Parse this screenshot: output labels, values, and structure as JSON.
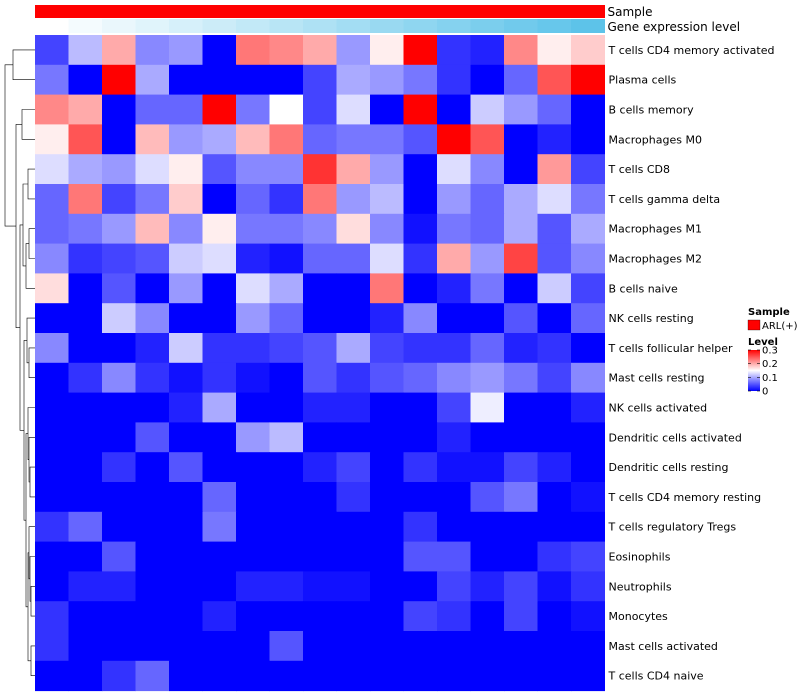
{
  "chart_data": {
    "type": "heatmap",
    "annotations": [
      {
        "name": "Sample",
        "color": "#ff0000"
      },
      {
        "name": "Gene expression level",
        "colors": [
          "#ffffff",
          "#f4fbfe",
          "#eaf7fc",
          "#e0f4fb",
          "#d6f0fa",
          "#ccecf8",
          "#c2e9f7",
          "#b8e5f5",
          "#aee1f4",
          "#a3ddf3",
          "#99d9f1",
          "#8fd6f0",
          "#85d2ef",
          "#7bceed",
          "#71caec",
          "#67c7eb",
          "#5dc3e9",
          "#53bfe8"
        ]
      }
    ],
    "rows": [
      "T cells CD4 memory activated",
      "Plasma cells",
      "B cells memory",
      "Macrophages M0",
      "T cells CD8",
      "T cells gamma delta",
      "Macrophages M1",
      "Macrophages M2",
      "B cells naive",
      "NK cells resting",
      "T cells follicular helper",
      "Mast cells resting",
      "NK cells activated",
      "Dendritic cells activated",
      "Dendritic cells resting",
      "T cells CD4 memory resting",
      "T cells regulatory  Tregs",
      "Eosinophils",
      "Neutrophils",
      "Monocytes",
      "Mast cells activated",
      "T cells CD4 naive"
    ],
    "values": [
      [
        0.04,
        0.11,
        0.2,
        0.08,
        0.09,
        0.0,
        0.23,
        0.22,
        0.2,
        0.09,
        0.16,
        0.3,
        0.03,
        0.02,
        0.22,
        0.16,
        0.18
      ],
      [
        0.07,
        0.0,
        0.3,
        0.1,
        0.0,
        0.0,
        0.0,
        0.0,
        0.04,
        0.1,
        0.09,
        0.07,
        0.03,
        0.0,
        0.06,
        0.25,
        0.3
      ],
      [
        0.22,
        0.2,
        0.0,
        0.06,
        0.06,
        0.3,
        0.07,
        0.15,
        0.04,
        0.13,
        0.0,
        0.3,
        0.0,
        0.12,
        0.09,
        0.06,
        0.0
      ],
      [
        0.16,
        0.25,
        0.0,
        0.19,
        0.09,
        0.1,
        0.19,
        0.23,
        0.06,
        0.07,
        0.07,
        0.05,
        0.3,
        0.25,
        0.0,
        0.02,
        0.0
      ],
      [
        0.13,
        0.1,
        0.09,
        0.13,
        0.16,
        0.05,
        0.08,
        0.08,
        0.27,
        0.2,
        0.09,
        0.0,
        0.13,
        0.08,
        0.0,
        0.21,
        0.04
      ],
      [
        0.06,
        0.23,
        0.04,
        0.07,
        0.18,
        0.0,
        0.06,
        0.03,
        0.23,
        0.09,
        0.11,
        0.0,
        0.09,
        0.06,
        0.1,
        0.13,
        0.07
      ],
      [
        0.06,
        0.07,
        0.09,
        0.19,
        0.08,
        0.16,
        0.07,
        0.07,
        0.08,
        0.17,
        0.08,
        0.01,
        0.07,
        0.06,
        0.1,
        0.05,
        0.1
      ],
      [
        0.08,
        0.03,
        0.04,
        0.05,
        0.12,
        0.13,
        0.02,
        0.01,
        0.06,
        0.06,
        0.13,
        0.03,
        0.2,
        0.09,
        0.26,
        0.05,
        0.08
      ],
      [
        0.17,
        0.0,
        0.05,
        0.0,
        0.09,
        0.0,
        0.13,
        0.1,
        0.0,
        0.0,
        0.23,
        0.0,
        0.02,
        0.07,
        0.0,
        0.12,
        0.04
      ],
      [
        0.0,
        0.0,
        0.12,
        0.08,
        0.0,
        0.0,
        0.09,
        0.06,
        0.0,
        0.0,
        0.02,
        0.08,
        0.0,
        0.0,
        0.05,
        0.0,
        0.06
      ],
      [
        0.08,
        0.0,
        0.0,
        0.02,
        0.12,
        0.03,
        0.03,
        0.04,
        0.05,
        0.1,
        0.04,
        0.03,
        0.03,
        0.06,
        0.02,
        0.03,
        0.0
      ],
      [
        0.0,
        0.03,
        0.08,
        0.03,
        0.01,
        0.03,
        0.01,
        0.0,
        0.05,
        0.03,
        0.05,
        0.06,
        0.08,
        0.09,
        0.07,
        0.04,
        0.08
      ],
      [
        0.0,
        0.0,
        0.0,
        0.0,
        0.02,
        0.1,
        0.0,
        0.0,
        0.02,
        0.02,
        0.0,
        0.0,
        0.04,
        0.14,
        0.0,
        0.0,
        0.02
      ],
      [
        0.0,
        0.0,
        0.0,
        0.05,
        0.0,
        0.0,
        0.09,
        0.11,
        0.0,
        0.0,
        0.0,
        0.0,
        0.02,
        0.0,
        0.0,
        0.0,
        0.0
      ],
      [
        0.0,
        0.0,
        0.03,
        0.0,
        0.05,
        0.0,
        0.0,
        0.0,
        0.02,
        0.04,
        0.0,
        0.03,
        0.01,
        0.01,
        0.04,
        0.02,
        0.0
      ],
      [
        0.0,
        0.0,
        0.0,
        0.0,
        0.0,
        0.06,
        0.0,
        0.0,
        0.0,
        0.03,
        0.0,
        0.0,
        0.0,
        0.05,
        0.07,
        0.0,
        0.01
      ],
      [
        0.03,
        0.06,
        0.0,
        0.0,
        0.0,
        0.07,
        0.0,
        0.0,
        0.0,
        0.0,
        0.0,
        0.03,
        0.0,
        0.0,
        0.0,
        0.0,
        0.0
      ],
      [
        0.0,
        0.0,
        0.05,
        0.0,
        0.0,
        0.0,
        0.0,
        0.0,
        0.0,
        0.0,
        0.0,
        0.05,
        0.05,
        0.0,
        0.0,
        0.03,
        0.04
      ],
      [
        0.0,
        0.02,
        0.02,
        0.0,
        0.0,
        0.0,
        0.02,
        0.02,
        0.01,
        0.01,
        0.0,
        0.0,
        0.04,
        0.02,
        0.04,
        0.01,
        0.03
      ],
      [
        0.03,
        0.0,
        0.0,
        0.0,
        0.0,
        0.02,
        0.0,
        0.0,
        0.0,
        0.0,
        0.0,
        0.04,
        0.03,
        0.0,
        0.04,
        0.0,
        0.01
      ],
      [
        0.03,
        0.0,
        0.0,
        0.0,
        0.0,
        0.0,
        0.0,
        0.05,
        0.0,
        0.0,
        0.0,
        0.0,
        0.0,
        0.0,
        0.0,
        0.0,
        0.0
      ],
      [
        0.0,
        0.0,
        0.03,
        0.06,
        0.0,
        0.0,
        0.0,
        0.0,
        0.0,
        0.0,
        0.0,
        0.0,
        0.0,
        0.0,
        0.0,
        0.0,
        0.0
      ]
    ],
    "color_scale": {
      "min": 0,
      "mid": 0.15,
      "max": 0.3,
      "low": "#0000ff",
      "mid_color": "#ffffff",
      "high": "#ff0000"
    },
    "legend": {
      "sample_title": "Sample",
      "sample_entry": "ARL(+)",
      "sample_color": "#ff0000",
      "level_title": "Level",
      "ticks": [
        {
          "value": 0.3,
          "label": "0.3"
        },
        {
          "value": 0.2,
          "label": "0.2"
        },
        {
          "value": 0.1,
          "label": "0.1"
        },
        {
          "value": 0,
          "label": "0"
        }
      ]
    }
  }
}
